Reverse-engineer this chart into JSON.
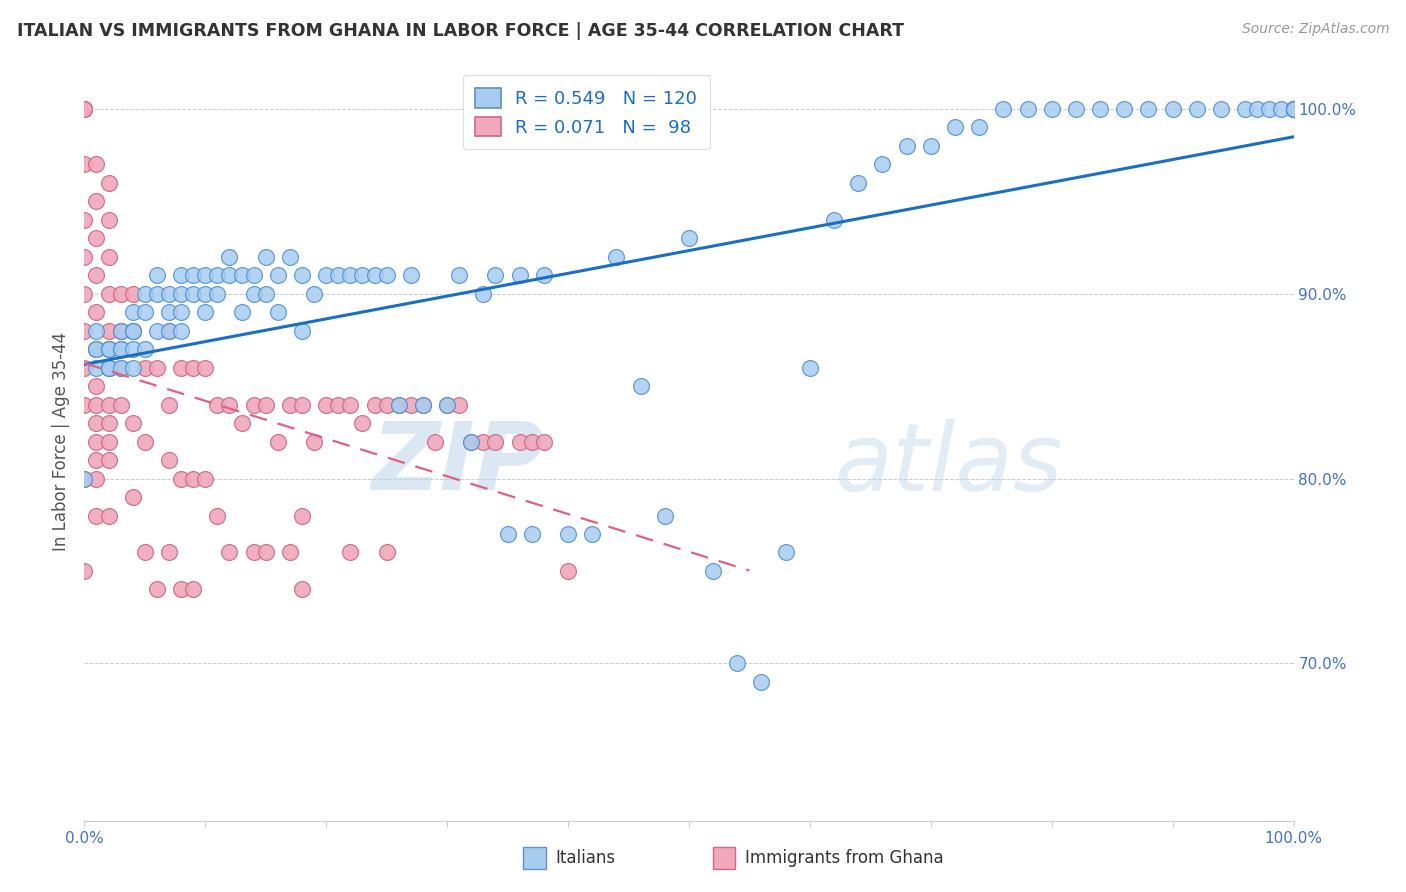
{
  "title": "ITALIAN VS IMMIGRANTS FROM GHANA IN LABOR FORCE | AGE 35-44 CORRELATION CHART",
  "source": "Source: ZipAtlas.com",
  "ylabel": "In Labor Force | Age 35-44",
  "ytick_labels": [
    "70.0%",
    "80.0%",
    "90.0%",
    "100.0%"
  ],
  "ytick_values": [
    0.7,
    0.8,
    0.9,
    1.0
  ],
  "xlim": [
    0.0,
    1.0
  ],
  "ylim": [
    0.615,
    1.025
  ],
  "legend_r_italians": "0.549",
  "legend_n_italians": "120",
  "legend_r_ghana": "0.071",
  "legend_n_ghana": "98",
  "color_italians": "#a8ccf0",
  "color_ghana": "#f0a8bc",
  "color_line_italians": "#1a6fc4",
  "color_line_ghana": "#e06080",
  "watermark_zip": "ZIP",
  "watermark_atlas": "atlas",
  "italians_x": [
    0.0,
    0.01,
    0.01,
    0.01,
    0.01,
    0.02,
    0.02,
    0.02,
    0.02,
    0.02,
    0.03,
    0.03,
    0.03,
    0.03,
    0.04,
    0.04,
    0.04,
    0.04,
    0.04,
    0.05,
    0.05,
    0.05,
    0.06,
    0.06,
    0.06,
    0.07,
    0.07,
    0.07,
    0.08,
    0.08,
    0.08,
    0.08,
    0.09,
    0.09,
    0.1,
    0.1,
    0.1,
    0.11,
    0.11,
    0.12,
    0.12,
    0.13,
    0.13,
    0.14,
    0.14,
    0.15,
    0.15,
    0.16,
    0.16,
    0.17,
    0.18,
    0.18,
    0.19,
    0.2,
    0.21,
    0.22,
    0.23,
    0.24,
    0.25,
    0.26,
    0.27,
    0.28,
    0.3,
    0.31,
    0.32,
    0.33,
    0.34,
    0.35,
    0.36,
    0.37,
    0.38,
    0.4,
    0.42,
    0.44,
    0.46,
    0.48,
    0.5,
    0.52,
    0.54,
    0.56,
    0.58,
    0.6,
    0.62,
    0.64,
    0.66,
    0.68,
    0.7,
    0.72,
    0.74,
    0.76,
    0.78,
    0.8,
    0.82,
    0.84,
    0.86,
    0.88,
    0.9,
    0.92,
    0.94,
    0.96,
    0.97,
    0.98,
    0.99,
    1.0,
    1.0,
    1.0,
    1.0,
    1.0,
    1.0,
    1.0,
    1.0,
    1.0,
    1.0,
    1.0,
    1.0,
    1.0,
    1.0,
    1.0,
    1.0,
    1.0
  ],
  "italians_y": [
    0.8,
    0.86,
    0.87,
    0.88,
    0.87,
    0.87,
    0.87,
    0.86,
    0.87,
    0.86,
    0.88,
    0.87,
    0.87,
    0.86,
    0.89,
    0.88,
    0.88,
    0.87,
    0.86,
    0.9,
    0.89,
    0.87,
    0.91,
    0.9,
    0.88,
    0.9,
    0.89,
    0.88,
    0.91,
    0.9,
    0.89,
    0.88,
    0.91,
    0.9,
    0.91,
    0.9,
    0.89,
    0.91,
    0.9,
    0.92,
    0.91,
    0.91,
    0.89,
    0.91,
    0.9,
    0.92,
    0.9,
    0.91,
    0.89,
    0.92,
    0.91,
    0.88,
    0.9,
    0.91,
    0.91,
    0.91,
    0.91,
    0.91,
    0.91,
    0.84,
    0.91,
    0.84,
    0.84,
    0.91,
    0.82,
    0.9,
    0.91,
    0.77,
    0.91,
    0.77,
    0.91,
    0.77,
    0.77,
    0.92,
    0.85,
    0.78,
    0.93,
    0.75,
    0.7,
    0.69,
    0.76,
    0.86,
    0.94,
    0.96,
    0.97,
    0.98,
    0.98,
    0.99,
    0.99,
    1.0,
    1.0,
    1.0,
    1.0,
    1.0,
    1.0,
    1.0,
    1.0,
    1.0,
    1.0,
    1.0,
    1.0,
    1.0,
    1.0,
    1.0,
    1.0,
    1.0,
    1.0,
    1.0,
    1.0,
    1.0,
    1.0,
    1.0,
    1.0,
    1.0,
    1.0,
    1.0,
    1.0,
    1.0,
    1.0,
    1.0
  ],
  "ghana_x": [
    0.0,
    0.0,
    0.0,
    0.0,
    0.0,
    0.0,
    0.0,
    0.0,
    0.0,
    0.0,
    0.0,
    0.0,
    0.01,
    0.01,
    0.01,
    0.01,
    0.01,
    0.01,
    0.01,
    0.01,
    0.01,
    0.01,
    0.01,
    0.01,
    0.01,
    0.02,
    0.02,
    0.02,
    0.02,
    0.02,
    0.02,
    0.02,
    0.02,
    0.02,
    0.02,
    0.02,
    0.03,
    0.03,
    0.03,
    0.03,
    0.04,
    0.04,
    0.04,
    0.04,
    0.05,
    0.05,
    0.05,
    0.06,
    0.06,
    0.07,
    0.07,
    0.07,
    0.07,
    0.08,
    0.08,
    0.08,
    0.09,
    0.09,
    0.09,
    0.1,
    0.1,
    0.11,
    0.11,
    0.12,
    0.12,
    0.13,
    0.14,
    0.14,
    0.15,
    0.15,
    0.16,
    0.17,
    0.17,
    0.18,
    0.18,
    0.18,
    0.19,
    0.2,
    0.21,
    0.22,
    0.22,
    0.23,
    0.24,
    0.25,
    0.25,
    0.26,
    0.27,
    0.28,
    0.29,
    0.3,
    0.31,
    0.32,
    0.33,
    0.34,
    0.36,
    0.37,
    0.38,
    0.4
  ],
  "ghana_y": [
    1.0,
    1.0,
    1.0,
    0.97,
    0.94,
    0.92,
    0.9,
    0.88,
    0.86,
    0.84,
    0.8,
    0.75,
    0.97,
    0.95,
    0.93,
    0.91,
    0.89,
    0.87,
    0.85,
    0.84,
    0.83,
    0.82,
    0.81,
    0.8,
    0.78,
    0.96,
    0.94,
    0.92,
    0.9,
    0.88,
    0.86,
    0.84,
    0.83,
    0.82,
    0.81,
    0.78,
    0.9,
    0.88,
    0.86,
    0.84,
    0.9,
    0.88,
    0.83,
    0.79,
    0.86,
    0.82,
    0.76,
    0.86,
    0.74,
    0.88,
    0.84,
    0.81,
    0.76,
    0.86,
    0.8,
    0.74,
    0.86,
    0.8,
    0.74,
    0.86,
    0.8,
    0.84,
    0.78,
    0.84,
    0.76,
    0.83,
    0.84,
    0.76,
    0.84,
    0.76,
    0.82,
    0.84,
    0.76,
    0.84,
    0.78,
    0.74,
    0.82,
    0.84,
    0.84,
    0.84,
    0.76,
    0.83,
    0.84,
    0.84,
    0.76,
    0.84,
    0.84,
    0.84,
    0.82,
    0.84,
    0.84,
    0.82,
    0.82,
    0.82,
    0.82,
    0.82,
    0.82,
    0.75
  ]
}
